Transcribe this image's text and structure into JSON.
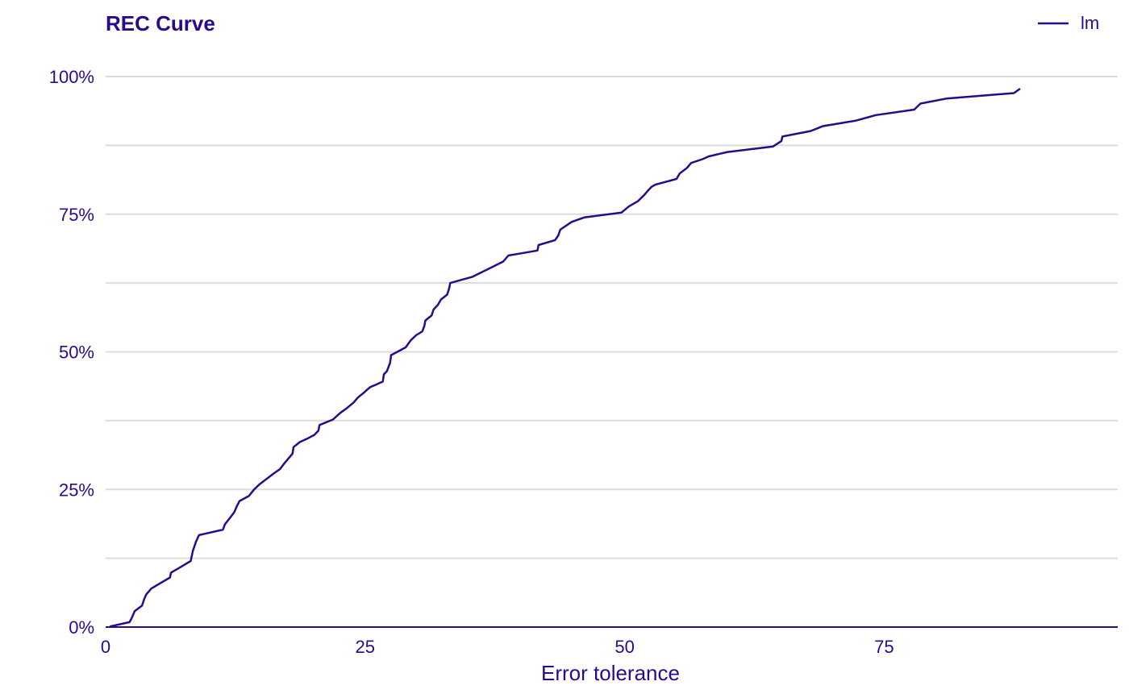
{
  "chart_data": {
    "type": "line",
    "title": "REC Curve",
    "xlabel": "Error tolerance",
    "ylabel": "",
    "xlim": [
      0,
      97.5
    ],
    "ylim": [
      0,
      1
    ],
    "x_ticks": [
      0,
      25,
      50,
      75
    ],
    "x_tick_labels": [
      "0",
      "25",
      "50",
      "75"
    ],
    "y_ticks": [
      0,
      0.25,
      0.5,
      0.75,
      1
    ],
    "y_tick_labels": [
      "0%",
      "25%",
      "50%",
      "75%",
      "100%"
    ],
    "grid": "horizontal",
    "legend": {
      "position": "top-right",
      "entries": [
        "lm"
      ]
    },
    "colors": {
      "line": "#2a0a8c",
      "grid": "#dcdcdc",
      "text": "#2a0a8c"
    },
    "series": [
      {
        "name": "lm",
        "x": [
          0.4,
          2.3,
          2.5,
          2.8,
          3.5,
          3.7,
          3.9,
          4.4,
          6.2,
          6.3,
          7.3,
          8.2,
          8.4,
          8.7,
          9.0,
          11.3,
          11.5,
          12.0,
          12.4,
          12.6,
          12.9,
          13.8,
          14.3,
          14.8,
          15.5,
          16.2,
          16.8,
          17.2,
          18.0,
          18.1,
          18.7,
          19.5,
          20.1,
          20.5,
          20.6,
          21.9,
          22.6,
          23.2,
          23.9,
          24.3,
          24.9,
          25.0,
          25.5,
          26.0,
          26.7,
          26.8,
          27.1,
          27.4,
          27.5,
          28.9,
          29.4,
          29.9,
          30.5,
          30.7,
          30.8,
          31.4,
          31.6,
          32.0,
          32.3,
          32.9,
          33.1,
          33.2,
          35.3,
          36.7,
          38.3,
          38.8,
          41.6,
          41.7,
          43.3,
          43.6,
          43.8,
          44.9,
          46.1,
          49.7,
          50.4,
          51.3,
          51.9,
          52.3,
          52.6,
          53.0,
          55.0,
          55.3,
          56.0,
          56.4,
          57.5,
          58.1,
          59.9,
          64.3,
          65.1,
          65.2,
          67.9,
          69.1,
          72.3,
          74.2,
          77.9,
          78.5,
          81.0,
          87.5,
          88.1
        ],
        "values": [
          0.001,
          0.009,
          0.016,
          0.029,
          0.039,
          0.05,
          0.059,
          0.07,
          0.09,
          0.099,
          0.11,
          0.12,
          0.138,
          0.155,
          0.167,
          0.177,
          0.187,
          0.199,
          0.209,
          0.218,
          0.229,
          0.238,
          0.25,
          0.259,
          0.269,
          0.279,
          0.287,
          0.297,
          0.315,
          0.327,
          0.336,
          0.343,
          0.349,
          0.357,
          0.367,
          0.377,
          0.389,
          0.397,
          0.408,
          0.417,
          0.426,
          0.428,
          0.436,
          0.44,
          0.446,
          0.459,
          0.465,
          0.48,
          0.494,
          0.508,
          0.521,
          0.53,
          0.537,
          0.547,
          0.557,
          0.566,
          0.577,
          0.585,
          0.595,
          0.604,
          0.616,
          0.625,
          0.636,
          0.649,
          0.664,
          0.675,
          0.684,
          0.694,
          0.703,
          0.711,
          0.722,
          0.736,
          0.744,
          0.753,
          0.764,
          0.774,
          0.785,
          0.794,
          0.8,
          0.804,
          0.814,
          0.824,
          0.834,
          0.843,
          0.85,
          0.855,
          0.863,
          0.873,
          0.883,
          0.891,
          0.901,
          0.91,
          0.92,
          0.93,
          0.94,
          0.951,
          0.96,
          0.97,
          0.978
        ]
      }
    ]
  }
}
